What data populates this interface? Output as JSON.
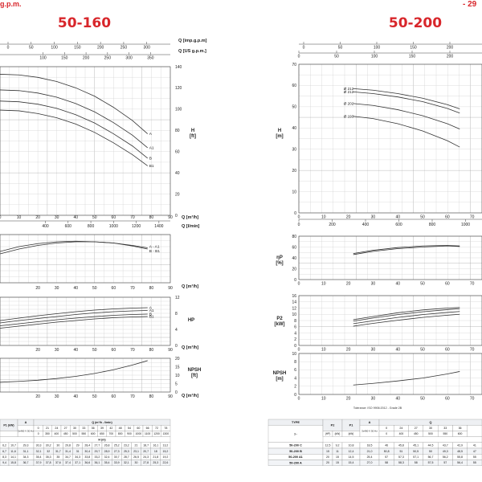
{
  "header": {
    "left_fragment": "g.p.m.",
    "right_fragment": "- 29",
    "left_title": "50-160",
    "right_title": "50-200"
  },
  "tolerance_note": "Tolerance: ISO 9906:2012 - Grade 2B",
  "chart_data": [
    {
      "id": "left-H",
      "type": "line",
      "title": "50-160",
      "top_axes": [
        {
          "label": "Q [imp.g.p.m]",
          "ticks": [
            "0",
            "50",
            "100",
            "150",
            "200",
            "250",
            "300"
          ]
        },
        {
          "label": "Q [US g.p.m.]",
          "ticks": [
            "100",
            "150",
            "200",
            "250",
            "300",
            "350"
          ]
        }
      ],
      "xlabel": "Q [m³/h]",
      "x_ticks": [
        "0",
        "10",
        "20",
        "30",
        "40",
        "50",
        "60",
        "70",
        "80",
        "90"
      ],
      "xlabel2": "Q [l/min]",
      "x2_ticks": [
        "400",
        "600",
        "800",
        "1000",
        "1200",
        "1400"
      ],
      "ylabel_right": "H\n[ft]",
      "yright_ticks": [
        "0",
        "20",
        "40",
        "60",
        "80",
        "100",
        "120",
        "140"
      ],
      "series": [
        {
          "name": "A",
          "x": [
            0,
            10,
            20,
            30,
            40,
            50,
            60,
            70,
            78
          ],
          "y": [
            40.5,
            40.3,
            39.6,
            38.4,
            36.6,
            34.2,
            31.0,
            27.2,
            23.4
          ]
        },
        {
          "name": "A1",
          "x": [
            0,
            10,
            20,
            30,
            40,
            50,
            60,
            70,
            78
          ],
          "y": [
            36.0,
            35.8,
            35.1,
            33.9,
            32.1,
            29.7,
            26.6,
            23.0,
            19.4
          ]
        },
        {
          "name": "B",
          "x": [
            0,
            10,
            20,
            30,
            40,
            50,
            60,
            70,
            78
          ],
          "y": [
            32.8,
            32.6,
            31.9,
            30.7,
            28.9,
            26.5,
            23.4,
            19.9,
            16.4
          ]
        },
        {
          "name": "B1",
          "x": [
            0,
            10,
            20,
            30,
            40,
            50,
            60,
            70,
            78
          ],
          "y": [
            30.2,
            30.0,
            29.2,
            28.0,
            26.2,
            23.8,
            20.8,
            17.4,
            14.2
          ]
        }
      ]
    },
    {
      "id": "left-eff",
      "type": "line",
      "xlabel": "Q [m³/h]",
      "x_ticks": [
        "20",
        "30",
        "40",
        "50",
        "60",
        "70",
        "80",
        "90"
      ],
      "series": [
        {
          "name": "A - A1",
          "x": [
            0,
            10,
            20,
            30,
            40,
            50,
            60,
            70,
            78
          ],
          "y": [
            52,
            60,
            65,
            68,
            69,
            68,
            66,
            62,
            58
          ]
        },
        {
          "name": "B - B1",
          "x": [
            0,
            10,
            20,
            30,
            40,
            50,
            60,
            70,
            78
          ],
          "y": [
            48,
            56,
            62,
            66,
            68,
            68,
            66,
            61,
            56
          ]
        }
      ]
    },
    {
      "id": "left-P",
      "type": "line",
      "xlabel": "Q [m³/h]",
      "x_ticks": [
        "20",
        "30",
        "40",
        "50",
        "60",
        "70",
        "80",
        "90"
      ],
      "ylabel_right": "HP",
      "yright_ticks": [
        "0",
        "4",
        "8",
        "12"
      ],
      "series": [
        {
          "name": "A",
          "x": [
            0,
            10,
            20,
            30,
            40,
            50,
            60,
            70,
            78
          ],
          "y": [
            6.2,
            6.8,
            7.4,
            7.9,
            8.4,
            8.8,
            9.1,
            9.3,
            9.4
          ]
        },
        {
          "name": "A1",
          "x": [
            0,
            10,
            20,
            30,
            40,
            50,
            60,
            70,
            78
          ],
          "y": [
            5.6,
            6.2,
            6.7,
            7.2,
            7.7,
            8.1,
            8.4,
            8.6,
            8.7
          ]
        },
        {
          "name": "B",
          "x": [
            0,
            10,
            20,
            30,
            40,
            50,
            60,
            70,
            78
          ],
          "y": [
            4.9,
            5.4,
            5.9,
            6.4,
            6.8,
            7.2,
            7.5,
            7.7,
            7.8
          ]
        },
        {
          "name": "B1",
          "x": [
            0,
            10,
            20,
            30,
            40,
            50,
            60,
            70,
            78
          ],
          "y": [
            4.3,
            4.8,
            5.3,
            5.8,
            6.2,
            6.6,
            6.9,
            7.1,
            7.2
          ]
        }
      ]
    },
    {
      "id": "left-NPSH",
      "type": "line",
      "xlabel": "Q [m³/h]",
      "x_ticks": [
        "20",
        "30",
        "40",
        "50",
        "60",
        "70",
        "80",
        "90"
      ],
      "ylabel_right": "NPSH\n[ft]",
      "yright_ticks": [
        "0",
        "5",
        "10",
        "15",
        "20"
      ],
      "series": [
        {
          "name": "",
          "x": [
            0,
            10,
            20,
            30,
            40,
            50,
            60,
            70,
            78
          ],
          "y": [
            5.8,
            6.3,
            7.0,
            8.0,
            9.3,
            11.0,
            13.2,
            16.0,
            18.6
          ]
        }
      ]
    },
    {
      "id": "right-H",
      "type": "line",
      "title": "50-200",
      "top_axes": [
        {
          "label": "",
          "ticks": [
            "0",
            "50",
            "100",
            "150",
            "200",
            "250"
          ]
        },
        {
          "label": "",
          "ticks": [
            "0",
            "50",
            "100",
            "150",
            "200",
            "250"
          ]
        }
      ],
      "ylabel": "H\n[m]",
      "ylim": [
        0,
        70
      ],
      "y_ticks": [
        "0",
        "10",
        "20",
        "30",
        "40",
        "50",
        "60",
        "70"
      ],
      "xlabel": "",
      "x_ticks": [
        "0",
        "10",
        "20",
        "30",
        "40",
        "50",
        "60",
        "70"
      ],
      "x2_ticks": [
        "0",
        "200",
        "400",
        "600",
        "800",
        "1000",
        "1200"
      ],
      "series": [
        {
          "name": "Ø 212",
          "x": [
            22,
            30,
            40,
            50,
            60,
            65
          ],
          "y": [
            58.5,
            57.8,
            56.2,
            54.0,
            51.0,
            49.0
          ]
        },
        {
          "name": "Ø 212",
          "x": [
            22,
            30,
            40,
            50,
            60,
            65
          ],
          "y": [
            57.0,
            56.2,
            54.6,
            52.4,
            49.2,
            47.0
          ]
        },
        {
          "name": "Ø 202",
          "x": [
            22,
            30,
            40,
            50,
            60,
            65
          ],
          "y": [
            51.5,
            50.6,
            48.6,
            45.8,
            42.0,
            39.5
          ]
        },
        {
          "name": "Ø 193",
          "x": [
            22,
            30,
            40,
            50,
            60,
            65
          ],
          "y": [
            45.5,
            44.4,
            42.0,
            38.6,
            34.0,
            31.0
          ]
        }
      ]
    },
    {
      "id": "right-eff",
      "type": "line",
      "ylabel": "ηP\n[%]",
      "ylim": [
        0,
        80
      ],
      "y_ticks": [
        "0",
        "20",
        "40",
        "60",
        "80"
      ],
      "x_ticks": [
        "0",
        "10",
        "20",
        "30",
        "40",
        "50",
        "60",
        "70"
      ],
      "series": [
        {
          "name": "",
          "x": [
            22,
            30,
            40,
            50,
            60,
            65
          ],
          "y": [
            48,
            54,
            59,
            62,
            63,
            62
          ]
        },
        {
          "name": "",
          "x": [
            22,
            30,
            40,
            50,
            60,
            65
          ],
          "y": [
            46,
            52,
            57,
            60,
            62,
            61
          ]
        }
      ]
    },
    {
      "id": "right-P",
      "type": "line",
      "ylabel": "P2\n[kW]",
      "ylim": [
        0,
        16
      ],
      "y_ticks": [
        "0",
        "2",
        "4",
        "6",
        "8",
        "10",
        "12",
        "14",
        "16"
      ],
      "x_ticks": [
        "0",
        "10",
        "20",
        "30",
        "40",
        "50",
        "60",
        "70"
      ],
      "series": [
        {
          "name": "",
          "x": [
            22,
            30,
            40,
            50,
            60,
            65
          ],
          "y": [
            8.3,
            9.3,
            10.5,
            11.4,
            12.0,
            12.2
          ]
        },
        {
          "name": "",
          "x": [
            22,
            30,
            40,
            50,
            60,
            65
          ],
          "y": [
            7.8,
            8.8,
            9.9,
            10.8,
            11.5,
            11.8
          ]
        },
        {
          "name": "",
          "x": [
            22,
            30,
            40,
            50,
            60,
            65
          ],
          "y": [
            7.0,
            7.9,
            9.0,
            9.9,
            10.6,
            10.9
          ]
        },
        {
          "name": "",
          "x": [
            22,
            30,
            40,
            50,
            60,
            65
          ],
          "y": [
            6.2,
            7.1,
            8.1,
            9.0,
            9.7,
            10.0
          ]
        }
      ]
    },
    {
      "id": "right-NPSH",
      "type": "line",
      "ylabel": "NPSH\n[m]",
      "ylim": [
        0,
        10
      ],
      "y_ticks": [
        "0",
        "2",
        "4",
        "6",
        "8",
        "10"
      ],
      "x_ticks": [
        "0",
        "10",
        "20",
        "30",
        "40",
        "50",
        "60",
        "70"
      ],
      "series": [
        {
          "name": "",
          "x": [
            22,
            30,
            40,
            50,
            60,
            65
          ],
          "y": [
            2.3,
            2.7,
            3.3,
            4.0,
            5.0,
            5.6
          ]
        }
      ]
    }
  ],
  "left_table": {
    "h1": [
      "P1 (kW)",
      "A",
      "Q (m³/h - l/min)"
    ],
    "volt": "3x400 V 50 Hz",
    "q_m3h": [
      "0",
      "21",
      "24",
      "27",
      "30",
      "33",
      "36",
      "39",
      "42",
      "48",
      "54",
      "60",
      "66",
      "72",
      "78"
    ],
    "q_lmin": [
      "0",
      "350",
      "400",
      "450",
      "500",
      "550",
      "600",
      "650",
      "700",
      "800",
      "900",
      "1000",
      "1100",
      "1200",
      "1300"
    ],
    "hlabel": "H (m)",
    "rows": [
      [
        "6,2",
        "10,7",
        "29,3",
        "30,3",
        "30,2",
        "30",
        "29,8",
        "29",
        "28,4",
        "27,7",
        "26,8",
        "25,2",
        "23,2",
        "21",
        "18,7",
        "16,1",
        "13,2"
      ],
      [
        "6,7",
        "11,6",
        "31,1",
        "32,1",
        "32",
        "31,7",
        "31,4",
        "31",
        "30,4",
        "29,7",
        "28,9",
        "27,3",
        "25,3",
        "23,1",
        "20,7",
        "18",
        "15,2"
      ],
      [
        "8,3",
        "14,1",
        "34,3",
        "35,4",
        "35,3",
        "35",
        "34,7",
        "34,3",
        "33,8",
        "33,2",
        "32,4",
        "30,7",
        "28,7",
        "26,5",
        "24,3",
        "21,8",
        "19,2"
      ],
      [
        "9,4",
        "15,8",
        "36,7",
        "37,9",
        "37,8",
        "37,6",
        "37,4",
        "37,1",
        "36,6",
        "36,1",
        "35,4",
        "33,9",
        "32,1",
        "30",
        "27,8",
        "25,3",
        "22,6"
      ]
    ]
  },
  "right_table": {
    "type_label": "TYPE",
    "phase": "3~",
    "headers": [
      "P2",
      "P1",
      "A",
      "Q"
    ],
    "units": [
      "(HP)",
      "(kW)",
      "(kW)",
      "3x400 V 50 Hz"
    ],
    "q_m3h": [
      "0",
      "24",
      "27",
      "30",
      "33",
      "36"
    ],
    "q_lmin": [
      "0",
      "400",
      "450",
      "500",
      "550",
      "600"
    ],
    "rows": [
      {
        "type": "50-200 C",
        "vals": [
          "12,5",
          "9,2",
          "10,8",
          "18,5",
          "46",
          "45,8",
          "45,1",
          "44,5",
          "43,7",
          "42,9",
          "41"
        ]
      },
      {
        "type": "50-200 B",
        "vals": [
          "15",
          "11",
          "12,4",
          "21,0",
          "50,8",
          "51",
          "50,5",
          "50",
          "49,3",
          "48,5",
          "47"
        ]
      },
      {
        "type": "50-200 A1",
        "vals": [
          "20",
          "15",
          "14,5",
          "25,4",
          "57",
          "57,3",
          "57,1",
          "56,7",
          "56,2",
          "55,8",
          "55"
        ]
      },
      {
        "type": "50-200 A",
        "vals": [
          "20",
          "15",
          "15,4",
          "27,0",
          "58",
          "58,3",
          "58",
          "57,5",
          "57",
          "56,4",
          "55"
        ]
      }
    ]
  }
}
